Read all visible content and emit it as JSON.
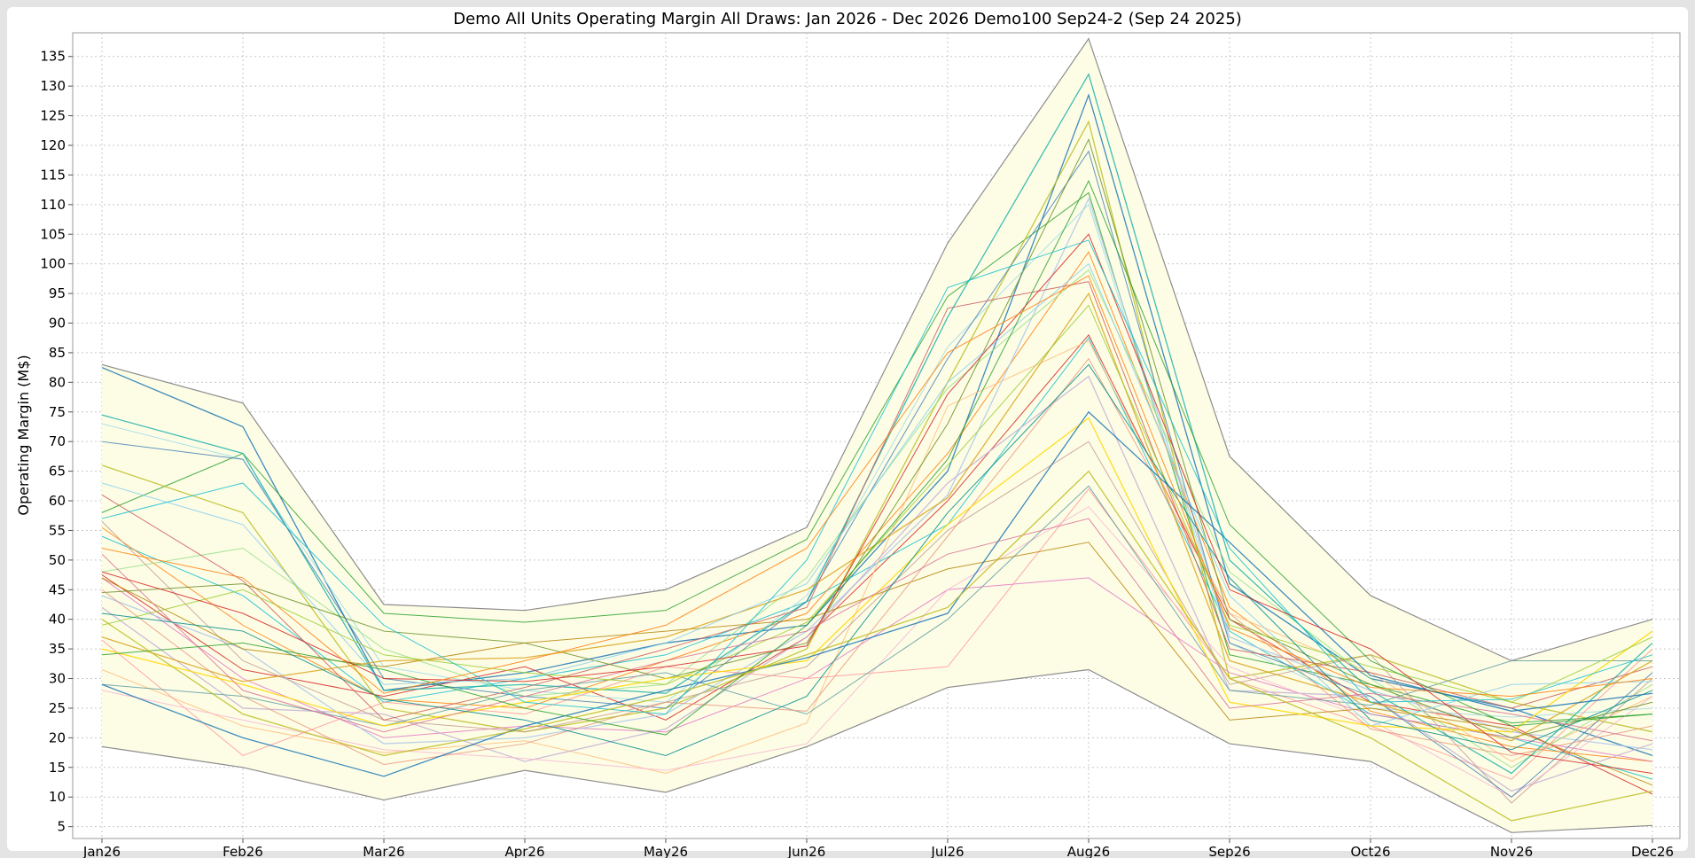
{
  "chart_data": {
    "type": "line",
    "title": "Demo All Units Operating Margin   All Draws: Jan 2026 - Dec 2026     Demo100 Sep24-2 (Sep 24 2025)",
    "xlabel": "",
    "ylabel": "Operating Margin (M$)",
    "categories": [
      "Jan26",
      "Feb26",
      "Mar26",
      "Apr26",
      "May26",
      "Jun26",
      "Jul26",
      "Aug26",
      "Sep26",
      "Oct26",
      "Nov26",
      "Dec26"
    ],
    "yticks": [
      5,
      10,
      15,
      20,
      25,
      30,
      35,
      40,
      45,
      50,
      55,
      60,
      65,
      70,
      75,
      80,
      85,
      90,
      95,
      100,
      105,
      110,
      115,
      120,
      125,
      130,
      135
    ],
    "ylim": [
      3,
      139
    ],
    "grid": true,
    "band_color": "#fdfde6",
    "envelope_color": "#8c8c8c",
    "envelope": {
      "max": [
        83.0,
        76.5,
        42.5,
        41.5,
        45.0,
        55.5,
        103.5,
        138.0,
        67.5,
        44.0,
        33.0,
        40.0
      ],
      "min": [
        18.5,
        15.0,
        9.5,
        14.5,
        10.8,
        18.5,
        28.5,
        31.5,
        19.0,
        16.0,
        4.0,
        5.2
      ]
    },
    "series": [
      {
        "values": [
          82.5,
          72.5,
          28.0,
          31.0,
          36.0,
          39.0,
          65.0,
          128.5,
          46.0,
          30.0,
          25.0,
          17.0
        ]
      },
      {
        "values": [
          58.0,
          68.0,
          41.0,
          39.5,
          41.5,
          53.5,
          94.5,
          112.0,
          34.0,
          29.0,
          22.5,
          24.0
        ]
      },
      {
        "values": [
          47.5,
          31.5,
          27.0,
          32.0,
          23.0,
          37.0,
          60.0,
          88.0,
          40.0,
          26.0,
          22.0,
          10.5
        ]
      },
      {
        "values": [
          54.0,
          44.0,
          26.0,
          30.0,
          34.0,
          43.0,
          56.0,
          87.5,
          38.0,
          24.0,
          20.0,
          13.0
        ]
      },
      {
        "values": [
          66.0,
          58.0,
          25.0,
          21.0,
          25.0,
          35.0,
          80.0,
          124.0,
          30.0,
          34.0,
          26.0,
          21.0
        ]
      },
      {
        "values": [
          55.5,
          39.0,
          26.5,
          25.0,
          33.0,
          41.0,
          68.0,
          102.0,
          42.0,
          24.5,
          18.5,
          16.0
        ]
      },
      {
        "values": [
          47.0,
          30.0,
          20.0,
          22.0,
          21.0,
          30.0,
          45.0,
          47.0,
          31.0,
          24.0,
          20.0,
          16.0
        ]
      },
      {
        "values": [
          73.0,
          67.0,
          32.0,
          28.0,
          26.0,
          44.0,
          86.0,
          110.0,
          36.0,
          25.0,
          23.5,
          25.0
        ]
      },
      {
        "values": [
          44.0,
          35.0,
          19.0,
          20.0,
          24.0,
          38.0,
          61.0,
          111.0,
          37.0,
          28.0,
          21.0,
          18.0
        ]
      },
      {
        "values": [
          31.5,
          22.0,
          17.5,
          19.5,
          14.0,
          22.5,
          76.0,
          87.0,
          41.0,
          31.0,
          16.0,
          27.0
        ]
      },
      {
        "values": [
          48.0,
          52.0,
          35.0,
          27.0,
          29.0,
          47.0,
          79.0,
          99.0,
          48.0,
          30.0,
          15.0,
          29.0
        ]
      },
      {
        "values": [
          36.5,
          17.0,
          26.0,
          24.0,
          32.0,
          30.0,
          32.0,
          62.0,
          30.0,
          22.0,
          13.0,
          35.0
        ]
      },
      {
        "values": [
          42.0,
          25.0,
          24.0,
          16.0,
          21.5,
          37.0,
          63.0,
          81.0,
          28.0,
          27.0,
          11.0,
          19.0
        ]
      },
      {
        "values": [
          56.5,
          33.0,
          23.0,
          21.0,
          26.0,
          32.0,
          55.0,
          70.0,
          29.0,
          34.0,
          9.0,
          30.0
        ]
      },
      {
        "values": [
          28.0,
          23.0,
          18.0,
          16.5,
          14.5,
          19.0,
          45.0,
          59.0,
          32.0,
          23.0,
          10.0,
          27.0
        ]
      },
      {
        "values": [
          47.0,
          35.0,
          32.0,
          36.0,
          38.0,
          40.0,
          48.5,
          53.0,
          23.0,
          25.0,
          21.5,
          12.0
        ]
      },
      {
        "values": [
          74.5,
          68.0,
          28.0,
          29.0,
          27.5,
          43.0,
          91.0,
          132.0,
          50.0,
          28.0,
          14.0,
          36.0
        ]
      },
      {
        "values": [
          70.0,
          67.0,
          30.0,
          27.0,
          25.0,
          43.0,
          84.0,
          119.0,
          36.0,
          27.0,
          10.0,
          31.0
        ]
      },
      {
        "values": [
          61.0,
          46.5,
          23.0,
          28.5,
          35.0,
          42.0,
          92.5,
          97.0,
          35.0,
          31.0,
          25.0,
          32.0
        ]
      },
      {
        "values": [
          44.5,
          46.0,
          38.0,
          36.0,
          30.0,
          36.0,
          73.0,
          121.0,
          40.0,
          29.0,
          20.0,
          26.0
        ]
      },
      {
        "values": [
          37.0,
          29.5,
          33.0,
          33.5,
          37.0,
          45.0,
          60.5,
          95.0,
          33.0,
          26.0,
          19.5,
          33.0
        ]
      },
      {
        "values": [
          29.0,
          27.0,
          22.0,
          28.0,
          31.0,
          24.0,
          40.0,
          62.5,
          28.0,
          25.5,
          33.0,
          33.0
        ]
      },
      {
        "values": [
          45.0,
          27.0,
          15.5,
          19.0,
          26.0,
          24.5,
          54.0,
          84.0,
          41.0,
          21.5,
          17.0,
          22.0
        ]
      },
      {
        "values": [
          63.0,
          56.0,
          29.0,
          30.0,
          36.0,
          46.0,
          80.0,
          100.0,
          44.0,
          22.0,
          29.0,
          29.5
        ]
      },
      {
        "values": [
          35.0,
          29.0,
          22.0,
          26.0,
          30.0,
          33.0,
          56.0,
          74.0,
          26.0,
          22.0,
          21.0,
          38.0
        ]
      },
      {
        "values": [
          39.0,
          45.0,
          34.0,
          31.0,
          29.0,
          39.5,
          66.0,
          93.0,
          39.0,
          32.0,
          26.0,
          37.0
        ]
      },
      {
        "values": [
          51.0,
          28.0,
          21.0,
          27.0,
          33.0,
          38.0,
          51.0,
          57.0,
          25.0,
          27.5,
          24.0,
          19.5
        ]
      },
      {
        "values": [
          41.0,
          38.0,
          26.5,
          23.0,
          17.0,
          27.0,
          58.0,
          83.0,
          47.0,
          23.0,
          18.0,
          28.0
        ]
      },
      {
        "values": [
          29.0,
          20.0,
          13.5,
          22.0,
          28.0,
          33.5,
          41.0,
          75.0,
          53.0,
          30.5,
          24.5,
          27.5
        ]
      },
      {
        "values": [
          34.0,
          36.0,
          31.5,
          25.0,
          20.5,
          39.0,
          67.0,
          114.0,
          56.0,
          33.0,
          22.0,
          24.0
        ]
      },
      {
        "values": [
          48.0,
          41.0,
          30.0,
          29.5,
          32.0,
          35.5,
          78.0,
          105.0,
          45.0,
          35.0,
          17.5,
          14.0
        ]
      },
      {
        "values": [
          57.0,
          63.0,
          39.0,
          26.0,
          24.0,
          50.0,
          96.0,
          104.0,
          52.0,
          26.0,
          26.5,
          34.0
        ]
      },
      {
        "values": [
          40.0,
          24.0,
          17.0,
          21.5,
          27.0,
          34.0,
          42.0,
          65.0,
          30.0,
          20.0,
          6.0,
          11.0
        ]
      },
      {
        "values": [
          52.0,
          47.0,
          27.5,
          33.0,
          39.0,
          52.0,
          85.0,
          98.0,
          38.5,
          28.5,
          27.0,
          30.0
        ]
      }
    ]
  }
}
